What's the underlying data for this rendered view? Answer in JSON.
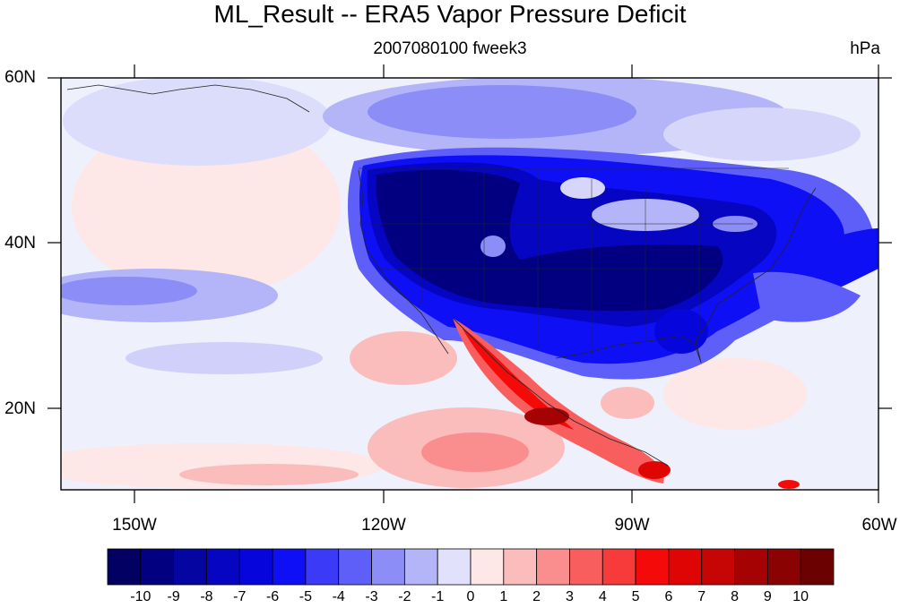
{
  "title": "ML_Result -- ERA5 Vapor Pressure Deficit",
  "subtitle": "2007080100 fweek3",
  "units": "hPa",
  "lat_labels": [
    "60N",
    "40N",
    "20N"
  ],
  "lon_labels": [
    "150W",
    "120W",
    "90W",
    "60W"
  ],
  "map": {
    "lon_range": [
      -159,
      -60
    ],
    "lat_range": [
      10,
      60
    ],
    "colorbar_labels": [
      "-10",
      "-9",
      "-8",
      "-7",
      "-6",
      "-5",
      "-4",
      "-3",
      "-2",
      "-1",
      "0",
      "1",
      "2",
      "3",
      "4",
      "5",
      "6",
      "7",
      "8",
      "9",
      "10"
    ],
    "colorbar_colors": [
      "#020063",
      "#020080",
      "#0505a2",
      "#0505c2",
      "#0606dc",
      "#0f0ff5",
      "#3b3bf7",
      "#5e5ef8",
      "#8d8df8",
      "#b4b4f9",
      "#e1e1fc",
      "#fde7e7",
      "#fbbcbc",
      "#fa8e8e",
      "#f95e5e",
      "#f73a3a",
      "#f50a0a",
      "#df0505",
      "#c60505",
      "#a50303",
      "#8a0202",
      "#6b0101"
    ],
    "background_color": "#eef0fb"
  }
}
